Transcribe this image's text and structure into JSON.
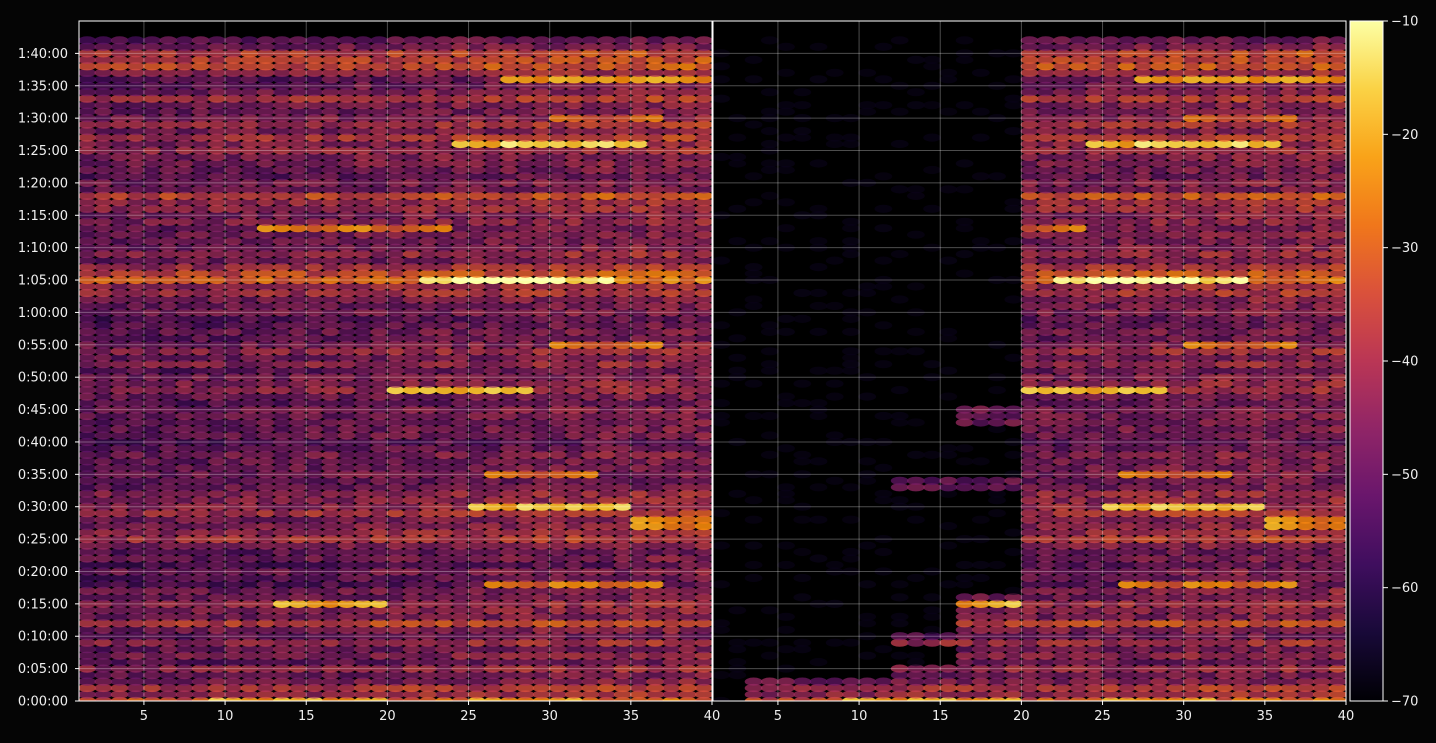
{
  "chart_data": {
    "type": "heatmap",
    "background": "#050505",
    "grid": true,
    "grid_color": "#ffffff",
    "colormap": "inferno",
    "panels": [
      {
        "name": "left",
        "xlim": [
          1,
          40
        ],
        "xticks": [
          "5",
          "10",
          "15",
          "20",
          "25",
          "30",
          "35",
          "40"
        ],
        "xtick_values": [
          5,
          10,
          15,
          20,
          25,
          30,
          35,
          40
        ]
      },
      {
        "name": "right",
        "xlim": [
          1,
          40
        ],
        "xticks": [
          "5",
          "10",
          "15",
          "20",
          "25",
          "30",
          "35",
          "40"
        ],
        "xtick_values": [
          5,
          10,
          15,
          20,
          25,
          30,
          35,
          40
        ],
        "active_from": [
          3,
          3,
          3,
          3,
          12,
          12,
          16,
          16,
          16,
          12,
          12,
          16,
          16,
          16,
          16,
          16,
          16,
          20,
          20,
          20,
          20,
          20,
          20,
          20,
          20,
          20,
          20,
          20,
          20,
          20,
          20,
          20,
          20,
          12,
          12,
          20,
          20,
          20,
          20,
          20,
          20,
          20,
          20,
          16,
          16,
          16,
          20,
          20,
          20,
          20,
          20,
          20,
          20,
          20,
          20,
          20,
          20,
          20,
          20,
          20,
          20,
          20,
          20,
          20,
          20,
          20,
          20,
          20,
          20,
          20,
          20,
          20,
          20,
          20,
          20,
          20,
          20,
          20,
          20,
          20,
          20,
          20,
          20,
          20,
          20,
          20,
          20,
          20,
          20,
          20,
          20,
          20,
          20,
          20,
          20,
          20,
          20,
          20,
          20,
          20,
          20,
          20,
          20
        ]
      }
    ],
    "y": {
      "min_seconds": 0,
      "max_seconds": 6300,
      "ticks": [
        "0:00:00",
        "0:05:00",
        "0:10:00",
        "0:15:00",
        "0:20:00",
        "0:25:00",
        "0:30:00",
        "0:35:00",
        "0:40:00",
        "0:45:00",
        "0:50:00",
        "0:55:00",
        "1:00:00",
        "1:05:00",
        "1:10:00",
        "1:15:00",
        "1:20:00",
        "1:25:00",
        "1:30:00",
        "1:35:00",
        "1:40:00"
      ],
      "tick_seconds": [
        0,
        300,
        600,
        900,
        1200,
        1500,
        1800,
        2100,
        2400,
        2700,
        3000,
        3300,
        3600,
        3900,
        4200,
        4500,
        4800,
        5100,
        5400,
        5700,
        6000
      ]
    },
    "colorbar": {
      "min": -70,
      "max": -10,
      "ticks": [
        "−10",
        "−20",
        "−30",
        "−40",
        "−50",
        "−60",
        "−70"
      ],
      "tick_values": [
        -10,
        -20,
        -30,
        -40,
        -50,
        -60,
        -70
      ]
    },
    "row_levels_db": [
      -34,
      -43,
      -40,
      -48,
      -50,
      -44,
      -52,
      -47,
      -50,
      -43,
      -52,
      -48,
      -37,
      -49,
      -47,
      -44,
      -50,
      -48,
      -54,
      -52,
      -49,
      -54,
      -50,
      -52,
      -48,
      -40,
      -44,
      -47,
      -48,
      -41,
      -44,
      -46,
      -45,
      -50,
      -52,
      -49,
      -50,
      -50,
      -48,
      -52,
      -54,
      -50,
      -50,
      -50,
      -50,
      -48,
      -52,
      -50,
      -44,
      -46,
      -48,
      -52,
      -45,
      -50,
      -44,
      -48,
      -52,
      -50,
      -52,
      -54,
      -49,
      -50,
      -48,
      -42,
      -44,
      -32,
      -36,
      -42,
      -50,
      -44,
      -48,
      -50,
      -48,
      -50,
      -46,
      -48,
      -44,
      -44,
      -36,
      -50,
      -48,
      -52,
      -50,
      -48,
      -48,
      -44,
      -46,
      -40,
      -48,
      -42,
      -47,
      -50,
      -48,
      -40,
      -48,
      -50,
      -52,
      -44,
      -36,
      -38,
      -38,
      -49,
      -52
    ],
    "hotspots": [
      {
        "t": 0,
        "x": 12,
        "db": -26
      },
      {
        "t": 0,
        "x": 16,
        "db": -28
      },
      {
        "t": 0,
        "x": 28,
        "db": -28
      },
      {
        "t": 900,
        "x": 16,
        "db": -26
      },
      {
        "t": 1080,
        "x": 29,
        "db": -34
      },
      {
        "t": 1080,
        "x": 33,
        "db": -32
      },
      {
        "t": 1650,
        "x": 38,
        "db": -30
      },
      {
        "t": 1800,
        "x": 28,
        "db": -26
      },
      {
        "t": 1800,
        "x": 31,
        "db": -24
      },
      {
        "t": 2100,
        "x": 29,
        "db": -34
      },
      {
        "t": 2880,
        "x": 23,
        "db": -26
      },
      {
        "t": 2880,
        "x": 25,
        "db": -26
      },
      {
        "t": 3300,
        "x": 33,
        "db": -34
      },
      {
        "t": 3900,
        "x": 25,
        "db": -22
      },
      {
        "t": 3900,
        "x": 27,
        "db": -14
      },
      {
        "t": 3900,
        "x": 30,
        "db": -20
      },
      {
        "t": 4380,
        "x": 15,
        "db": -32
      },
      {
        "t": 4380,
        "x": 20,
        "db": -34
      },
      {
        "t": 5160,
        "x": 27,
        "db": -26
      },
      {
        "t": 5160,
        "x": 30,
        "db": -22
      },
      {
        "t": 5160,
        "x": 32,
        "db": -26
      },
      {
        "t": 5400,
        "x": 33,
        "db": -36
      },
      {
        "t": 5760,
        "x": 30,
        "db": -30
      },
      {
        "t": 5760,
        "x": 33,
        "db": -28
      },
      {
        "t": 5760,
        "x": 39,
        "db": -28
      }
    ],
    "time_step_seconds": 60,
    "x_step": 1
  }
}
